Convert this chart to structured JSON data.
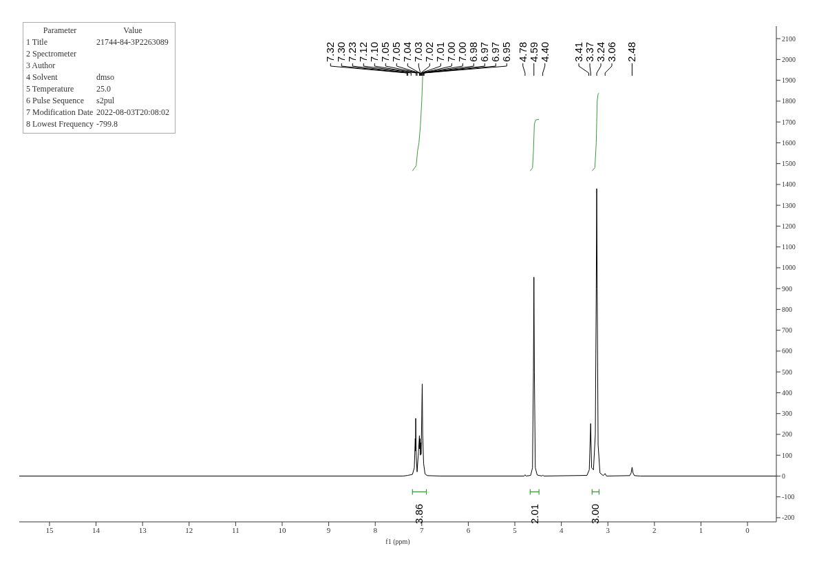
{
  "chart_data": {
    "type": "line",
    "xlabel": "f1 (ppm)",
    "xlim": [
      15.65,
      -0.62
    ],
    "xticks": [
      15,
      14,
      13,
      12,
      11,
      10,
      9,
      8,
      7,
      6,
      5,
      4,
      3,
      2,
      1,
      0
    ],
    "ylim": [
      -220,
      2160
    ],
    "yticks": [
      -200,
      -100,
      0,
      100,
      200,
      300,
      400,
      500,
      600,
      700,
      800,
      900,
      1000,
      1100,
      1200,
      1300,
      1400,
      1500,
      1600,
      1700,
      1800,
      1900,
      2000,
      2100
    ],
    "marker": "none",
    "series": [
      {
        "color": "#000000",
        "x": [
          15.65,
          7.4,
          7.3,
          7.2,
          7.16,
          7.14,
          7.135,
          7.13,
          7.12,
          7.1,
          7.07,
          7.05,
          7.045,
          7.035,
          7.028,
          7.02,
          7.015,
          7.01,
          7.0,
          6.99,
          6.98,
          6.96,
          6.93,
          6.88,
          6.6,
          4.8,
          4.78,
          4.76,
          4.66,
          4.62,
          4.6,
          4.59,
          4.58,
          4.56,
          4.52,
          4.42,
          4.4,
          4.38,
          3.45,
          3.4,
          3.37,
          3.35,
          3.31,
          3.27,
          3.25,
          3.24,
          3.23,
          3.21,
          3.17,
          3.1,
          3.06,
          3.03,
          2.53,
          2.5,
          2.48,
          2.46,
          2.43,
          2.3,
          -0.62
        ],
        "values": [
          0,
          0,
          3,
          8,
          40,
          180,
          120,
          277,
          100,
          20,
          120,
          194,
          130,
          180,
          100,
          160,
          105,
          150,
          290,
          442,
          200,
          60,
          10,
          2,
          0,
          0,
          6,
          0,
          3,
          40,
          500,
          955,
          500,
          40,
          5,
          0,
          5,
          0,
          3,
          30,
          252,
          40,
          30,
          200,
          900,
          1380,
          900,
          150,
          15,
          2,
          12,
          0,
          2,
          15,
          42,
          15,
          2,
          0,
          0
        ]
      },
      {
        "color": "#3c9a3c",
        "x": [
          7.2,
          7.12,
          7.09,
          7.06,
          7.03,
          7.0,
          6.98,
          6.95,
          6.9
        ],
        "values": [
          1465,
          1490,
          1560,
          1600,
          1680,
          1800,
          1920,
          1940,
          1945
        ]
      },
      {
        "color": "#3c9a3c",
        "x": [
          4.67,
          4.62,
          4.6,
          4.58,
          4.55,
          4.48
        ],
        "values": [
          1465,
          1480,
          1560,
          1690,
          1710,
          1713
        ]
      },
      {
        "color": "#3c9a3c",
        "x": [
          3.34,
          3.28,
          3.25,
          3.23,
          3.21,
          3.19
        ],
        "values": [
          1465,
          1480,
          1600,
          1800,
          1835,
          1839
        ]
      }
    ],
    "annotations": [
      "Parameter\tValue",
      "1 Title\t21744-84-3P2263089",
      "2 Spectrometer",
      "3 Author",
      "4 Solvent\tdmso",
      "5 Temperature\t25.0",
      "6 Pulse Sequence\ts2pul",
      "7 Modification Date\t2022-08-03T20:08:02",
      "8 Lowest Frequency\t-799.8",
      {
        "text": "7.32",
        "x": 7.32
      },
      {
        "text": "7.30",
        "x": 7.3
      },
      {
        "text": "7.23",
        "x": 7.23
      },
      {
        "text": "7.12",
        "x": 7.12
      },
      {
        "text": "7.10",
        "x": 7.1
      },
      {
        "text": "7.05",
        "x": 7.05
      },
      {
        "text": "7.05",
        "x": 7.05
      },
      {
        "text": "7.04",
        "x": 7.04
      },
      {
        "text": "7.03",
        "x": 7.03
      },
      "7.02",
      {
        "text": "7.01",
        "x": 7.01
      },
      {
        "text": "7.00",
        "x": 7.0
      },
      {
        "text": "7.00",
        "x": 7.0
      },
      {
        "text": "6.98",
        "x": 6.98
      },
      {
        "text": "6.97",
        "x": 6.97
      },
      {
        "text": "6.97",
        "x": 6.97
      },
      {
        "text": "6.95",
        "x": 6.95
      },
      {
        "text": "4.78",
        "x": 4.78
      },
      {
        "text": "4.59",
        "x": 4.59
      },
      {
        "text": "4.40",
        "x": 4.4
      },
      {
        "text": "3.41",
        "x": 3.41
      },
      {
        "text": "3.37",
        "x": 3.37
      },
      {
        "text": "3.24",
        "x": 3.24
      },
      {
        "text": "3.06",
        "x": 3.06
      },
      {
        "text": "2.48",
        "x": 2.48
      },
      "3.86",
      "2.01",
      "3.00"
    ]
  }
}
